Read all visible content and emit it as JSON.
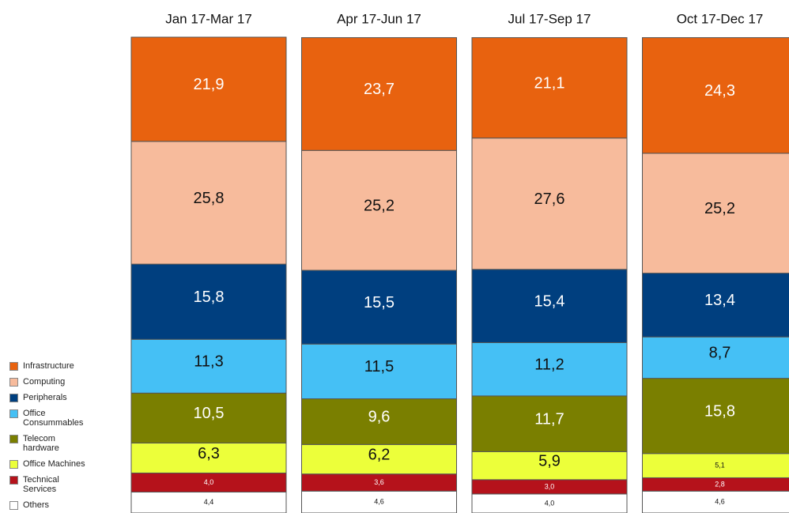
{
  "chart_data": {
    "type": "stacked_bar",
    "categories": [
      "Jan 17-Mar 17",
      "Apr 17-Jun 17",
      "Jul 17-Sep 17",
      "Oct 17-Dec 17"
    ],
    "series": [
      {
        "name": "Infrastructure",
        "color": "#e8620f",
        "values": [
          21.9,
          23.7,
          21.1,
          24.3
        ],
        "value_labels": [
          "21,9",
          "23,7",
          "21,1",
          "24,3"
        ]
      },
      {
        "name": "Computing",
        "color": "#f7bb9c",
        "values": [
          25.8,
          25.2,
          27.6,
          25.2
        ],
        "value_labels": [
          "25,8",
          "25,2",
          "27,6",
          "25,2"
        ]
      },
      {
        "name": "Peripherals",
        "color": "#003f7f",
        "values": [
          15.8,
          15.5,
          15.4,
          13.4
        ],
        "value_labels": [
          "15,8",
          "15,5",
          "15,4",
          "13,4"
        ]
      },
      {
        "name": "Office Consummables",
        "color": "#45c0f5",
        "values": [
          11.3,
          11.5,
          11.2,
          8.7
        ],
        "value_labels": [
          "11,3",
          "11,5",
          "11,2",
          "8,7"
        ]
      },
      {
        "name": "Telecom hardware",
        "color": "#7a7f00",
        "values": [
          10.5,
          9.6,
          11.7,
          15.8
        ],
        "value_labels": [
          "10,5",
          "9,6",
          "11,7",
          "15,8"
        ]
      },
      {
        "name": "Office Machines",
        "color": "#ecff3a",
        "values": [
          6.3,
          6.2,
          5.9,
          5.1
        ],
        "value_labels": [
          "6,3",
          "6,2",
          "5,9",
          "5,1"
        ]
      },
      {
        "name": "Technical Services",
        "color": "#b5121b",
        "values": [
          4.0,
          3.6,
          3.0,
          2.8
        ],
        "value_labels": [
          "4,0",
          "3,6",
          "3,0",
          "2,8"
        ]
      },
      {
        "name": "Others",
        "color": "#ffffff",
        "values": [
          4.4,
          4.6,
          4.0,
          4.6
        ],
        "value_labels": [
          "4,4",
          "4,6",
          "4,0",
          "4,6"
        ]
      }
    ]
  }
}
